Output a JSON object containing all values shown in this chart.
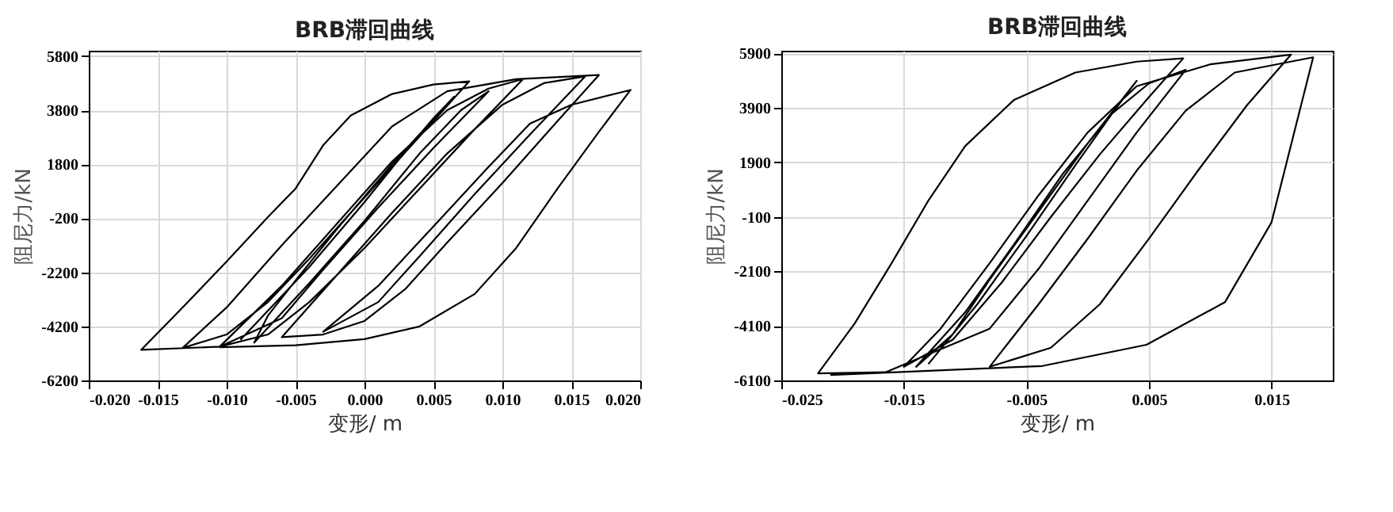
{
  "chart_data": [
    {
      "type": "line",
      "title": "BRB滞回曲线",
      "xlabel": "变形/ m",
      "ylabel": "阻尼力/kN",
      "xlim": [
        -0.02,
        0.02
      ],
      "ylim": [
        -6200,
        6000
      ],
      "xticks": [
        {
          "value": -0.02,
          "label": "-0.020"
        },
        {
          "value": -0.015,
          "label": "-0.015"
        },
        {
          "value": -0.01,
          "label": "-0.010"
        },
        {
          "value": -0.005,
          "label": "-0.005"
        },
        {
          "value": 0,
          "label": "0.000"
        },
        {
          "value": 0.005,
          "label": "0.005"
        },
        {
          "value": 0.01,
          "label": "0.010"
        },
        {
          "value": 0.015,
          "label": "0.015"
        },
        {
          "value": 0.02,
          "label": "0.020"
        }
      ],
      "yticks": [
        -6200,
        -4200,
        -2200,
        -200,
        1800,
        3800,
        5800
      ],
      "grid": true,
      "legend": false,
      "marker": "none",
      "line_style": "solid",
      "series": [
        {
          "color": "#000000",
          "x": [
            -0.009,
            -0.004,
            0.0,
            0.003,
            0.005,
            0.0065,
            0.002,
            -0.002,
            -0.005,
            -0.007,
            -0.008,
            -0.004,
            0.0,
            0.004,
            0.007,
            0.009,
            0.005,
            0.001,
            -0.003,
            -0.006,
            -0.0105,
            -0.006,
            -0.002,
            0.002,
            0.006,
            0.009,
            0.0115,
            0.008,
            0.004,
            0.0,
            -0.004,
            -0.007,
            -0.0105,
            -0.0162,
            -0.013,
            -0.01,
            -0.007,
            -0.005,
            -0.003,
            -0.001,
            0.002,
            0.005,
            0.0076,
            0.005,
            0.002,
            -0.001,
            -0.004,
            -0.007,
            -0.01,
            -0.0132,
            -0.01,
            -0.006,
            -0.002,
            0.002,
            0.006,
            0.011,
            0.017,
            0.014,
            0.01,
            0.006,
            0.003,
            0.0,
            -0.003,
            -0.006,
            -0.002,
            0.002,
            0.006,
            0.01,
            0.013,
            0.016,
            0.012,
            0.008,
            0.004,
            0.001,
            -0.003,
            0.001,
            0.005,
            0.009,
            0.012,
            0.015,
            0.0193,
            0.017,
            0.014,
            0.011,
            0.008,
            0.004,
            0.0,
            -0.005,
            -0.0105
          ],
          "values": [
            -4700,
            -2000,
            400,
            2300,
            3500,
            4300,
            1800,
            -600,
            -2500,
            -3800,
            -4800,
            -2600,
            -300,
            2200,
            3800,
            4500,
            2400,
            200,
            -2100,
            -3900,
            -4950,
            -2700,
            -400,
            1900,
            3800,
            4600,
            4950,
            3100,
            900,
            -1300,
            -3300,
            -4500,
            -4950,
            -5070,
            -3400,
            -1800,
            -150,
            900,
            2500,
            3600,
            4400,
            4750,
            4870,
            3400,
            1700,
            0,
            -1700,
            -3300,
            -4500,
            -5000,
            -3500,
            -1200,
            1000,
            3200,
            4500,
            4950,
            5100,
            3400,
            1100,
            -1100,
            -2800,
            -4000,
            -4500,
            -4600,
            -2300,
            0,
            2200,
            4000,
            4800,
            5050,
            2900,
            700,
            -1600,
            -3300,
            -4400,
            -2700,
            -500,
            1700,
            3300,
            4000,
            4550,
            3000,
            900,
            -1300,
            -3000,
            -4200,
            -4670,
            -4900,
            -4970
          ]
        }
      ]
    },
    {
      "type": "line",
      "title": "BRB滞回曲线",
      "xlabel": "变形/ m",
      "ylabel": "阻尼力/kN",
      "xlim": [
        -0.025,
        0.02
      ],
      "ylim": [
        -6100,
        6000
      ],
      "xticks": [
        {
          "value": -0.025,
          "label": "-0.025"
        },
        {
          "value": -0.015,
          "label": "-0.015"
        },
        {
          "value": -0.005,
          "label": "-0.005"
        },
        {
          "value": 0.005,
          "label": "0.005"
        },
        {
          "value": 0.015,
          "label": "0.015"
        }
      ],
      "yticks": [
        -6100,
        -4100,
        -2100,
        -100,
        1900,
        3900,
        5900
      ],
      "grid": true,
      "legend": false,
      "marker": "none",
      "line_style": "solid",
      "series": [
        {
          "color": "#000000",
          "x": [
            -0.013,
            -0.009,
            -0.005,
            -0.001,
            0.002,
            0.004,
            0.0,
            -0.004,
            -0.008,
            -0.011,
            -0.014,
            -0.01,
            -0.006,
            -0.002,
            0.002,
            0.005,
            0.008,
            0.004,
            0.0,
            -0.004,
            -0.008,
            -0.0165,
            -0.022,
            -0.019,
            -0.016,
            -0.013,
            -0.01,
            -0.006,
            -0.001,
            0.004,
            0.0078,
            0.005,
            0.001,
            -0.003,
            -0.007,
            -0.011,
            -0.015,
            -0.012,
            -0.008,
            -0.004,
            0.0,
            0.004,
            0.01,
            0.0166,
            0.013,
            0.009,
            0.005,
            0.001,
            -0.003,
            -0.008,
            -0.004,
            0.0,
            0.004,
            0.008,
            0.012,
            0.0184,
            0.015,
            0.0112,
            0.0048,
            -0.0037,
            -0.021
          ],
          "values": [
            -5500,
            -3300,
            -800,
            1800,
            3700,
            4900,
            2600,
            100,
            -2400,
            -4400,
            -5600,
            -3600,
            -1100,
            1500,
            3700,
            4800,
            5300,
            3000,
            500,
            -2000,
            -4200,
            -5800,
            -5840,
            -4000,
            -1800,
            500,
            2500,
            4200,
            5200,
            5600,
            5720,
            4300,
            2200,
            -100,
            -2500,
            -4600,
            -5600,
            -4200,
            -1800,
            700,
            3000,
            4700,
            5500,
            5860,
            4000,
            1600,
            -900,
            -3300,
            -4900,
            -5600,
            -3300,
            -900,
            1600,
            3800,
            5200,
            5760,
            -300,
            -3230,
            -4790,
            -5570,
            -5900
          ]
        }
      ]
    }
  ]
}
